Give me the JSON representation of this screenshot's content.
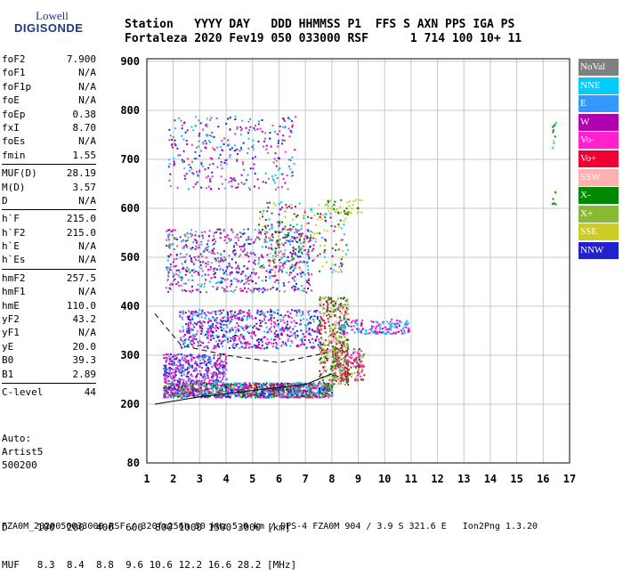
{
  "logo": {
    "line1": "Lowell",
    "line2": "DIGISONDE"
  },
  "header": {
    "labels": "Station   YYYY DAY   DDD HHMMSS P1  FFS S AXN PPS IGA PS",
    "values": "Fortaleza 2020 Fev19 050 033000 RSF      1 714 100 10+ 11"
  },
  "params": {
    "group1": [
      {
        "label": "foF2",
        "value": "7.900"
      },
      {
        "label": "foF1",
        "value": "N/A"
      },
      {
        "label": "foF1p",
        "value": "N/A"
      },
      {
        "label": "foE",
        "value": "N/A"
      },
      {
        "label": "foEp",
        "value": "0.38"
      },
      {
        "label": "fxI",
        "value": "8.70"
      },
      {
        "label": "foEs",
        "value": "N/A"
      },
      {
        "label": "fmin",
        "value": "1.55"
      }
    ],
    "group2": [
      {
        "label": "MUF(D)",
        "value": "28.19"
      },
      {
        "label": "M(D)",
        "value": "3.57"
      },
      {
        "label": "D",
        "value": "N/A"
      }
    ],
    "group3": [
      {
        "label": "h`F",
        "value": "215.0"
      },
      {
        "label": "h`F2",
        "value": "215.0"
      },
      {
        "label": "h`E",
        "value": "N/A"
      },
      {
        "label": "h`Es",
        "value": "N/A"
      }
    ],
    "group4": [
      {
        "label": "hmF2",
        "value": "257.5"
      },
      {
        "label": "hmF1",
        "value": "N/A"
      },
      {
        "label": "hmE",
        "value": "110.0"
      },
      {
        "label": "yF2",
        "value": "43.2"
      },
      {
        "label": "yF1",
        "value": "N/A"
      },
      {
        "label": "yE",
        "value": "20.0"
      },
      {
        "label": "B0",
        "value": "39.3"
      },
      {
        "label": "B1",
        "value": "2.89"
      }
    ],
    "group5": [
      {
        "label": "C-level",
        "value": "44"
      }
    ]
  },
  "auto": {
    "line1": "Auto:",
    "line2": "Artist5",
    "line3": "500200"
  },
  "legend": [
    {
      "label": "NoVal",
      "color": "#808080"
    },
    {
      "label": "NNE",
      "color": "#00ccff"
    },
    {
      "label": "E",
      "color": "#3399ff"
    },
    {
      "label": "W",
      "color": "#b000b0"
    },
    {
      "label": "Vo-",
      "color": "#ff22cc"
    },
    {
      "label": "Vo+",
      "color": "#ee0033"
    },
    {
      "label": "SSW",
      "color": "#ffb0b0"
    },
    {
      "label": "X-",
      "color": "#008800"
    },
    {
      "label": "X+",
      "color": "#88bb33"
    },
    {
      "label": "SSE",
      "color": "#cccc22"
    },
    {
      "label": "NNW",
      "color": "#2222cc"
    }
  ],
  "bottom": {
    "row1": "D     100  200  400  600  800 1000 1500 3000 [km]",
    "row2": "MUF   8.3  8.4  8.8  9.6 10.6 12.2 16.6 28.2 [MHz]"
  },
  "footer": "FZA0M_2020050033000.RSF / 320fx256h 50 kHz 5.0 km / DPS-4 FZA0M 904 / 3.9 S 321.6 E   Ion2Png 1.3.20",
  "chart_data": {
    "type": "scatter",
    "x_ticks": [
      "1",
      "2",
      "3",
      "4",
      "5",
      "6",
      "7",
      "8",
      "9",
      "10",
      "11",
      "12",
      "13",
      "14",
      "15",
      "16",
      "17"
    ],
    "y_ticks": [
      "80",
      "200",
      "300",
      "400",
      "500",
      "600",
      "700",
      "800",
      "900"
    ],
    "xlim": [
      1,
      17
    ],
    "ylim": [
      80,
      900
    ],
    "grid": true,
    "traces": [
      {
        "name": "hmF2 profile",
        "color": "#000000",
        "points": [
          [
            1.3,
            200
          ],
          [
            3,
            215
          ],
          [
            5,
            228
          ],
          [
            7,
            240
          ],
          [
            8,
            262
          ]
        ]
      },
      {
        "name": "secondary",
        "color": "#000000",
        "dash": true,
        "points": [
          [
            1.3,
            385
          ],
          [
            2.3,
            320
          ],
          [
            4,
            300
          ],
          [
            6,
            285
          ],
          [
            7.8,
            305
          ]
        ]
      }
    ],
    "clusters": [
      {
        "xr": [
          1.6,
          8.0
        ],
        "yr": [
          215,
          245
        ],
        "n": 1400,
        "colors": [
          "#00ccff",
          "#3399ff",
          "#b000b0",
          "#ff22cc",
          "#ee0033",
          "#008800",
          "#88bb33",
          "#2222cc"
        ]
      },
      {
        "xr": [
          1.6,
          4.0
        ],
        "yr": [
          245,
          305
        ],
        "n": 380,
        "colors": [
          "#b000b0",
          "#2222cc",
          "#ff22cc",
          "#3399ff"
        ]
      },
      {
        "xr": [
          2.2,
          7.6
        ],
        "yr": [
          315,
          395
        ],
        "n": 700,
        "colors": [
          "#b000b0",
          "#ff22cc",
          "#00ccff",
          "#2222cc"
        ]
      },
      {
        "xr": [
          1.7,
          7.2
        ],
        "yr": [
          430,
          560
        ],
        "n": 700,
        "colors": [
          "#00ccff",
          "#b000b0",
          "#2222cc",
          "#808080",
          "#ff22cc"
        ]
      },
      {
        "xr": [
          5.2,
          8.6
        ],
        "yr": [
          470,
          615
        ],
        "n": 260,
        "colors": [
          "#008800",
          "#cccc22",
          "#00ccff",
          "#b000b0"
        ]
      },
      {
        "xr": [
          1.8,
          6.6
        ],
        "yr": [
          640,
          790
        ],
        "n": 320,
        "colors": [
          "#2222cc",
          "#b000b0",
          "#00ccff",
          "#808080",
          "#ff22cc"
        ]
      },
      {
        "xr": [
          7.5,
          8.6
        ],
        "yr": [
          240,
          420
        ],
        "n": 450,
        "colors": [
          "#008800",
          "#88bb33",
          "#ee0033",
          "#ffb0b0"
        ]
      },
      {
        "xr": [
          8.0,
          9.2
        ],
        "yr": [
          250,
          315
        ],
        "n": 200,
        "colors": [
          "#88bb33",
          "#008800",
          "#ee0033",
          "#ff22cc"
        ]
      },
      {
        "xr": [
          8.2,
          10.9
        ],
        "yr": [
          345,
          375
        ],
        "n": 160,
        "colors": [
          "#00ccff",
          "#3399ff",
          "#b000b0",
          "#ff22cc"
        ]
      },
      {
        "xr": [
          7.8,
          9.1
        ],
        "yr": [
          590,
          620
        ],
        "n": 40,
        "colors": [
          "#cccc22",
          "#008800"
        ]
      },
      {
        "xr": [
          16.3,
          16.45
        ],
        "yr": [
          720,
          780
        ],
        "n": 12,
        "colors": [
          "#008800",
          "#cccc22",
          "#00ccff"
        ]
      },
      {
        "xr": [
          16.3,
          16.45
        ],
        "yr": [
          600,
          640
        ],
        "n": 6,
        "colors": [
          "#008800",
          "#cccc22"
        ]
      }
    ]
  }
}
